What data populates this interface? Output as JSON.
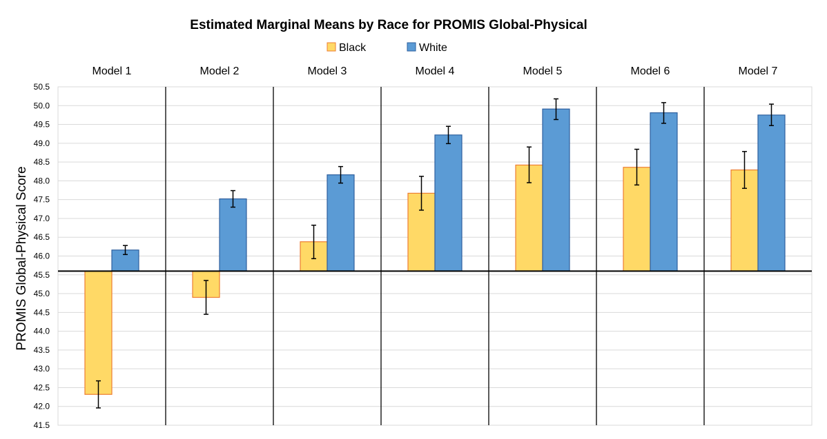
{
  "chart_data": {
    "type": "bar",
    "title": "Estimated Marginal Means by Race for PROMIS Global-Physical",
    "ylabel": "PROMIS Global-Physical Score",
    "xlabel": "",
    "ylim": [
      41.5,
      50.5
    ],
    "ytick_step": 0.5,
    "baseline": 45.6,
    "grid": true,
    "legend_position": "top-center",
    "categories": [
      "Model 1",
      "Model 2",
      "Model 3",
      "Model 4",
      "Model 5",
      "Model 6",
      "Model 7"
    ],
    "series": [
      {
        "name": "Black",
        "color": "#FFD966",
        "edge_color": "#ED7D31",
        "values": [
          42.32,
          44.9,
          46.38,
          47.67,
          48.42,
          48.36,
          48.29
        ],
        "error_low": [
          41.96,
          44.45,
          45.93,
          47.22,
          47.95,
          47.89,
          47.8
        ],
        "error_high": [
          42.68,
          45.35,
          46.82,
          48.12,
          48.9,
          48.84,
          48.78
        ]
      },
      {
        "name": "White",
        "color": "#5B9BD5",
        "edge_color": "#2E5F9E",
        "values": [
          46.16,
          47.52,
          48.16,
          49.22,
          49.91,
          49.81,
          49.75
        ],
        "error_low": [
          46.04,
          47.3,
          47.94,
          48.99,
          49.63,
          49.53,
          49.47
        ],
        "error_high": [
          46.28,
          47.74,
          48.38,
          49.45,
          50.18,
          50.08,
          50.04
        ]
      }
    ]
  }
}
